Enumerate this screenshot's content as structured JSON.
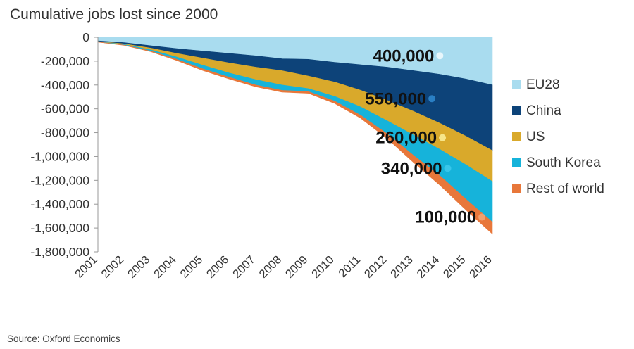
{
  "chart_data": {
    "type": "area",
    "stacked": true,
    "title": "Cumulative jobs lost since 2000",
    "source": "Source: Oxford Economics",
    "x": [
      "2001",
      "2002",
      "2003",
      "2004",
      "2005",
      "2006",
      "2007",
      "2008",
      "2009",
      "2010",
      "2011",
      "2012",
      "2013",
      "2014",
      "2015",
      "2016"
    ],
    "ylim": [
      -1800000,
      0
    ],
    "yticks": [
      {
        "value": 0,
        "label": "0"
      },
      {
        "value": -200000,
        "label": "-200,000"
      },
      {
        "value": -400000,
        "label": "-400,000"
      },
      {
        "value": -600000,
        "label": "-600,000"
      },
      {
        "value": -800000,
        "label": "-800,000"
      },
      {
        "value": -1000000,
        "label": "-1,000,000"
      },
      {
        "value": -1200000,
        "label": "-1,200,000"
      },
      {
        "value": -1400000,
        "label": "-1,400,000"
      },
      {
        "value": -1600000,
        "label": "-1,600,000"
      },
      {
        "value": -1800000,
        "label": "-1,800,000"
      }
    ],
    "series": [
      {
        "name": "EU28",
        "color": "#a9dcef",
        "values": [
          -30000,
          -45000,
          -70000,
          -95000,
          -115000,
          -135000,
          -155000,
          -180000,
          -185000,
          -210000,
          -230000,
          -250000,
          -280000,
          -310000,
          -350000,
          -400000
        ]
      },
      {
        "name": "China",
        "color": "#0d4379",
        "values": [
          -5000,
          -10000,
          -20000,
          -40000,
          -60000,
          -80000,
          -95000,
          -100000,
          -140000,
          -165000,
          -215000,
          -280000,
          -340000,
          -410000,
          -480000,
          -550000
        ]
      },
      {
        "name": "US",
        "color": "#d9a92b",
        "values": [
          -2000,
          -5000,
          -15000,
          -30000,
          -60000,
          -85000,
          -105000,
          -120000,
          -105000,
          -120000,
          -140000,
          -170000,
          -200000,
          -220000,
          -240000,
          -260000
        ]
      },
      {
        "name": "South Korea",
        "color": "#16b3da",
        "values": [
          -2000,
          -5000,
          -10000,
          -20000,
          -30000,
          -35000,
          -45000,
          -45000,
          -25000,
          -40000,
          -70000,
          -110000,
          -170000,
          -220000,
          -290000,
          -340000
        ]
      },
      {
        "name": "Rest of world",
        "color": "#e8773a",
        "values": [
          -1000,
          -2000,
          -5000,
          -10000,
          -15000,
          -15000,
          -15000,
          -15000,
          -15000,
          -20000,
          -25000,
          -40000,
          -60000,
          -80000,
          -90000,
          -100000
        ]
      }
    ],
    "annotations": [
      {
        "series": "EU28",
        "text": "400,000",
        "dot_color": "#e8f6fb"
      },
      {
        "series": "China",
        "text": "550,000",
        "dot_color": "#2a7fc4"
      },
      {
        "series": "US",
        "text": "260,000",
        "dot_color": "#f6e58a"
      },
      {
        "series": "South Korea",
        "text": "340,000",
        "dot_color": "#39c6ea"
      },
      {
        "series": "Rest of world",
        "text": "100,000",
        "dot_color": "#f1a06f"
      }
    ],
    "legend_position": "right"
  }
}
